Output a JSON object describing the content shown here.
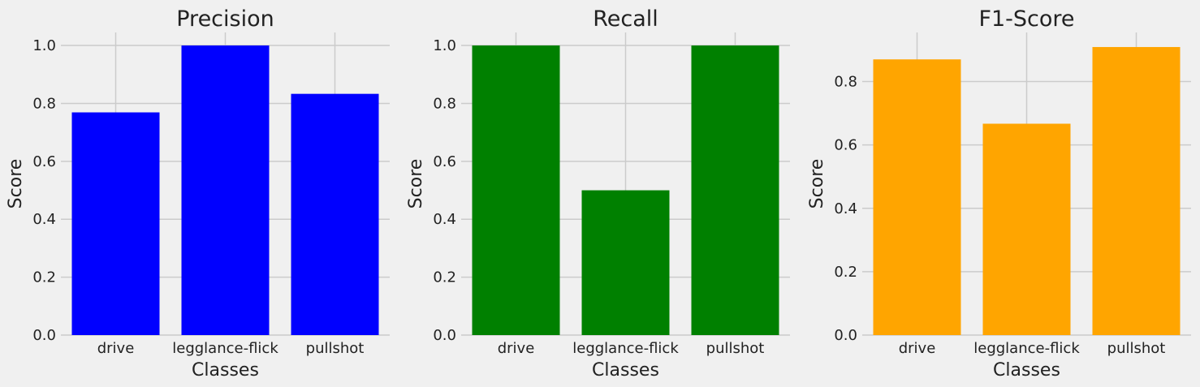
{
  "chart_data": [
    {
      "type": "bar",
      "title": "Precision",
      "xlabel": "Classes",
      "ylabel": "Score",
      "categories": [
        "drive",
        "legglance-flick",
        "pullshot"
      ],
      "values": [
        0.769,
        1.0,
        0.833
      ],
      "color": "#0000ff",
      "ylim": [
        0,
        1.045
      ],
      "yticks": [
        "0.0",
        "0.2",
        "0.4",
        "0.6",
        "0.8",
        "1.0"
      ],
      "grid": true
    },
    {
      "type": "bar",
      "title": "Recall",
      "xlabel": "Classes",
      "ylabel": "Score",
      "categories": [
        "drive",
        "legglance-flick",
        "pullshot"
      ],
      "values": [
        1.0,
        0.5,
        1.0
      ],
      "color": "#008000",
      "ylim": [
        0,
        1.045
      ],
      "yticks": [
        "0.0",
        "0.2",
        "0.4",
        "0.6",
        "0.8",
        "1.0"
      ],
      "grid": true
    },
    {
      "type": "bar",
      "title": "F1-Score",
      "xlabel": "Classes",
      "ylabel": "Score",
      "categories": [
        "drive",
        "legglance-flick",
        "pullshot"
      ],
      "values": [
        0.87,
        0.667,
        0.909
      ],
      "color": "#ffa500",
      "ylim": [
        0,
        0.955
      ],
      "yticks": [
        "0.0",
        "0.2",
        "0.4",
        "0.6",
        "0.8"
      ],
      "grid": true
    }
  ]
}
